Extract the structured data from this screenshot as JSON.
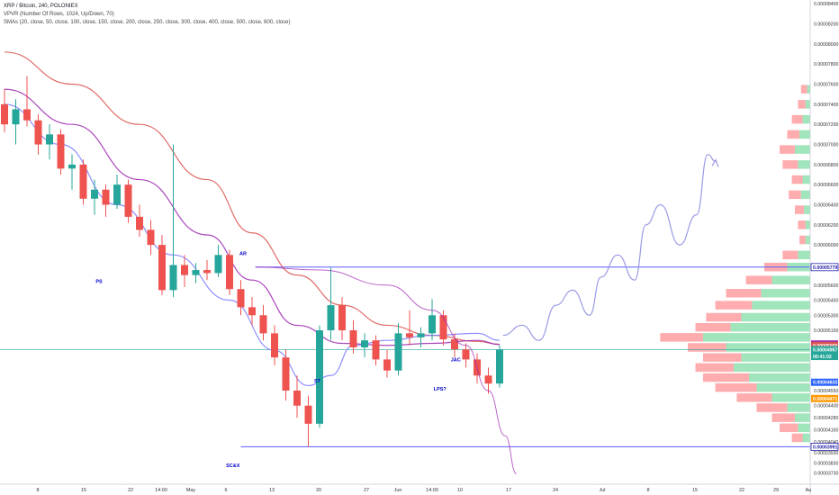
{
  "header": {
    "title": "XRP / Bitcoin, 240, POLONIEX",
    "vpvr": "VPVR (Number Of Rows, 1024, Up/Down, 70)",
    "smas": "SMAs (20, close, 50, close, 100, close, 150, close, 200, close, 250, close, 300, close, 400, close, 500, close, 600, close)"
  },
  "colors": {
    "up": "#26a69a",
    "down": "#ef5350",
    "annotation": "#0000cc",
    "sma_red": "#d9534f",
    "sma_purple": "#9c27b0",
    "sma_blue": "#7b7bff",
    "projection": "#9a9ae6",
    "vol_up": "#8fe0b0",
    "vol_down": "#ff9ea0",
    "horizontal_line": "#5c5cff",
    "tick_text": "#333333"
  },
  "chart_data": {
    "type": "candlestick",
    "y_axis": {
      "position": "right",
      "range": [
        3.69e-05,
        8.42e-05
      ],
      "ticks": [
        "0.00008400",
        "0.00008200",
        "0.00008000",
        "0.00007800",
        "0.00007600",
        "0.00007400",
        "0.00007200",
        "0.00007000",
        "0.00006800",
        "0.00006600",
        "0.00006400",
        "0.00006200",
        "0.00006000",
        "0.00005600",
        "0.00005450",
        "0.00005300",
        "0.00005150",
        "0.00004550",
        "0.00004400",
        "0.00004280",
        "0.00004160",
        "0.00004040",
        "0.00003930",
        "0.00003830",
        "0.00003730"
      ]
    },
    "x_axis": {
      "ticks": [
        "8",
        "15",
        "22",
        "14:00",
        "May",
        "6",
        "13",
        "20",
        "27",
        "Jun",
        "14:00",
        "10",
        "17",
        "24",
        "Jul",
        "8",
        "15",
        "22",
        "29",
        "Au"
      ]
    },
    "price_labels": [
      {
        "text": "0.00005779",
        "value": 5.779e-05,
        "style": "blue-outline"
      },
      {
        "text": "0.00005014",
        "value": 5.014e-05,
        "style": "purple"
      },
      {
        "text": "0.00005000",
        "value": 5e-05,
        "style": "red"
      },
      {
        "text": "0.00004957",
        "value": 4.957e-05,
        "style": "teal"
      },
      {
        "text": "00:41:02",
        "value": 4.89e-05,
        "style": "teal"
      },
      {
        "text": "0.00004633",
        "value": 4.633e-05,
        "style": "blue"
      },
      {
        "text": "0.00004471",
        "value": 4.471e-05,
        "style": "orange"
      },
      {
        "text": "0.00003991",
        "value": 3.991e-05,
        "style": "blue-outline"
      }
    ],
    "annotations": [
      {
        "text": "AR",
        "x": 21.2,
        "y": 5.9e-05
      },
      {
        "text": "PS",
        "x": 8.4,
        "y": 5.62e-05
      },
      {
        "text": "SC&X",
        "x": 20.3,
        "y": 3.79e-05
      },
      {
        "text": "ST",
        "x": 27.8,
        "y": 4.63e-05
      },
      {
        "text": "LPS?",
        "x": 38.7,
        "y": 4.55e-05
      },
      {
        "text": "JAC",
        "x": 40.1,
        "y": 4.84e-05
      }
    ],
    "horizontal_lines": [
      {
        "name": "AR level",
        "value": 5.779e-05,
        "x_start": 22.3
      },
      {
        "name": "SC level",
        "value": 3.991e-05,
        "x_start": 21.0
      }
    ],
    "ohlc": [
      [
        0.0,
        7.4e-05,
        7.55e-05,
        7.12e-05,
        7.2e-05
      ],
      [
        1.0,
        7.2e-05,
        7.45e-05,
        7e-05,
        7.35e-05
      ],
      [
        2.0,
        7.35e-05,
        7.68e-05,
        7.18e-05,
        7.24e-05
      ],
      [
        3.0,
        7.24e-05,
        7.3e-05,
        6.9e-05,
        7e-05
      ],
      [
        4.0,
        7e-05,
        7.2e-05,
        6.85e-05,
        7.1e-05
      ],
      [
        5.0,
        7.1e-05,
        7.15e-05,
        6.7e-05,
        6.76e-05
      ],
      [
        6.0,
        6.76e-05,
        6.9e-05,
        6.55e-05,
        6.8e-05
      ],
      [
        7.0,
        6.8e-05,
        6.85e-05,
        6.4e-05,
        6.46e-05
      ],
      [
        8.0,
        6.46e-05,
        6.65e-05,
        6.3e-05,
        6.55e-05
      ],
      [
        9.0,
        6.55e-05,
        6.6e-05,
        6.28e-05,
        6.4e-05
      ],
      [
        10.0,
        6.4e-05,
        6.7e-05,
        6.36e-05,
        6.6e-05
      ],
      [
        11.0,
        6.6e-05,
        6.65e-05,
        6.22e-05,
        6.28e-05
      ],
      [
        12.0,
        6.28e-05,
        6.4e-05,
        6.08e-05,
        6.15e-05
      ],
      [
        13.0,
        6.15e-05,
        6.25e-05,
        5.9e-05,
        6e-05
      ],
      [
        14.0,
        6e-05,
        6.1e-05,
        5.5e-05,
        5.55e-05
      ],
      [
        15.0,
        5.55e-05,
        7e-05,
        5.48e-05,
        5.8e-05
      ],
      [
        16.0,
        5.8e-05,
        5.9e-05,
        5.58e-05,
        5.7e-05
      ],
      [
        17.0,
        5.7e-05,
        5.82e-05,
        5.62e-05,
        5.75e-05
      ],
      [
        18.0,
        5.75e-05,
        5.85e-05,
        5.65e-05,
        5.72e-05
      ],
      [
        19.0,
        5.72e-05,
        6e-05,
        5.68e-05,
        5.9e-05
      ],
      [
        20.0,
        5.9e-05,
        5.95e-05,
        5.5e-05,
        5.56e-05
      ],
      [
        21.0,
        5.56e-05,
        5.65e-05,
        5.3e-05,
        5.38e-05
      ],
      [
        22.0,
        5.38e-05,
        5.48e-05,
        5.2e-05,
        5.3e-05
      ],
      [
        23.0,
        5.3e-05,
        5.4e-05,
        5.05e-05,
        5.12e-05
      ],
      [
        24.0,
        5.12e-05,
        5.2e-05,
        4.8e-05,
        4.88e-05
      ],
      [
        25.0,
        4.88e-05,
        4.96e-05,
        4.45e-05,
        4.55e-05
      ],
      [
        26.0,
        4.55e-05,
        4.7e-05,
        4.28e-05,
        4.4e-05
      ],
      [
        27.0,
        4.4e-05,
        4.5e-05,
        3.99e-05,
        4.22e-05
      ],
      [
        28.0,
        4.22e-05,
        5.2e-05,
        4.18e-05,
        5.15e-05
      ],
      [
        29.0,
        5.15e-05,
        5.78e-05,
        5.05e-05,
        5.4e-05
      ],
      [
        30.0,
        5.4e-05,
        5.48e-05,
        5.05e-05,
        5.15e-05
      ],
      [
        31.0,
        5.15e-05,
        5.25e-05,
        4.92e-05,
        4.98e-05
      ],
      [
        32.0,
        4.98e-05,
        5.12e-05,
        4.88e-05,
        5.05e-05
      ],
      [
        33.0,
        5.05e-05,
        5.1e-05,
        4.8e-05,
        4.86e-05
      ],
      [
        34.0,
        4.86e-05,
        4.96e-05,
        4.68e-05,
        4.75e-05
      ],
      [
        35.0,
        4.75e-05,
        5.22e-05,
        4.7e-05,
        5.12e-05
      ],
      [
        36.0,
        5.12e-05,
        5.35e-05,
        5e-05,
        5.08e-05
      ],
      [
        37.0,
        5.08e-05,
        5.18e-05,
        4.98e-05,
        5.12e-05
      ],
      [
        38.0,
        5.12e-05,
        5.46e-05,
        5.05e-05,
        5.3e-05
      ],
      [
        39.0,
        5.3e-05,
        5.35e-05,
        5e-05,
        5.06e-05
      ],
      [
        40.0,
        5.06e-05,
        5.12e-05,
        4.88e-05,
        4.96e-05
      ],
      [
        41.0,
        4.96e-05,
        5.02e-05,
        4.78e-05,
        4.86e-05
      ],
      [
        42.0,
        4.86e-05,
        4.92e-05,
        4.62e-05,
        4.7e-05
      ],
      [
        43.0,
        4.7e-05,
        4.78e-05,
        4.52e-05,
        4.62e-05
      ],
      [
        44.0,
        4.62e-05,
        5e-05,
        4.58e-05,
        4.96e-05
      ]
    ],
    "sma_lines": [
      {
        "color": "red",
        "points": [
          [
            0,
            7.92e-05
          ],
          [
            6,
            7.6e-05
          ],
          [
            12,
            7.2e-05
          ],
          [
            18,
            6.65e-05
          ],
          [
            22,
            6.12e-05
          ],
          [
            26,
            5.7e-05
          ],
          [
            30,
            5.4e-05
          ],
          [
            34,
            5.2e-05
          ],
          [
            38,
            5.1e-05
          ],
          [
            42,
            5.04e-05
          ],
          [
            44,
            5.01e-05
          ]
        ]
      },
      {
        "color": "purple",
        "points": [
          [
            0,
            7.55e-05
          ],
          [
            6,
            7.2e-05
          ],
          [
            12,
            6.65e-05
          ],
          [
            18,
            6.1e-05
          ],
          [
            22,
            5.65e-05
          ],
          [
            26,
            5.2e-05
          ],
          [
            30,
            5.02e-05
          ],
          [
            34,
            5e-05
          ],
          [
            38,
            5.02e-05
          ],
          [
            42,
            5.05e-05
          ],
          [
            44,
            5.01e-05
          ]
        ]
      },
      {
        "color": "blue",
        "points": [
          [
            0,
            7.4e-05
          ],
          [
            5,
            7e-05
          ],
          [
            10,
            6.4e-05
          ],
          [
            15,
            5.9e-05
          ],
          [
            20,
            5.45e-05
          ],
          [
            24,
            4.95e-05
          ],
          [
            27,
            4.6e-05
          ],
          [
            29,
            4.7e-05
          ],
          [
            31,
            5e-05
          ],
          [
            34,
            5.05e-05
          ],
          [
            38,
            5.1e-05
          ],
          [
            42,
            5.12e-05
          ],
          [
            44,
            5.05e-05
          ]
        ]
      }
    ],
    "arc_curve": [
      [
        22.3,
        5.78e-05
      ],
      [
        28,
        5.75e-05
      ],
      [
        34,
        5.6e-05
      ],
      [
        38,
        5.35e-05
      ],
      [
        41,
        5e-05
      ],
      [
        43,
        4.55e-05
      ],
      [
        44.5,
        4.1e-05
      ],
      [
        45.5,
        3.72e-05
      ]
    ],
    "projection_curve": [
      [
        44.3,
        5.1e-05
      ],
      [
        46,
        5.2e-05
      ],
      [
        47.5,
        5.05e-05
      ],
      [
        49,
        5.4e-05
      ],
      [
        50.5,
        5.55e-05
      ],
      [
        52,
        5.3e-05
      ],
      [
        53,
        5.68e-05
      ],
      [
        54.5,
        5.9e-05
      ],
      [
        56,
        5.65e-05
      ],
      [
        57,
        6.2e-05
      ],
      [
        58.3,
        6.4e-05
      ],
      [
        60,
        6e-05
      ],
      [
        61.5,
        6.3e-05
      ],
      [
        62.5,
        6.9e-05
      ],
      [
        63.2,
        6.83e-05
      ]
    ],
    "volume_profile": [
      [
        7.55e-05,
        0.06,
        0.02
      ],
      [
        7.4e-05,
        0.08,
        0.03
      ],
      [
        7.25e-05,
        0.12,
        0.05
      ],
      [
        7.1e-05,
        0.15,
        0.07
      ],
      [
        6.95e-05,
        0.2,
        0.1
      ],
      [
        6.8e-05,
        0.18,
        0.08
      ],
      [
        6.65e-05,
        0.12,
        0.05
      ],
      [
        6.5e-05,
        0.14,
        0.06
      ],
      [
        6.35e-05,
        0.1,
        0.04
      ],
      [
        6.2e-05,
        0.08,
        0.03
      ],
      [
        6.05e-05,
        0.07,
        0.03
      ],
      [
        5.9e-05,
        0.18,
        0.08
      ],
      [
        5.78e-05,
        0.3,
        0.15
      ],
      [
        5.65e-05,
        0.42,
        0.25
      ],
      [
        5.52e-05,
        0.55,
        0.32
      ],
      [
        5.4e-05,
        0.62,
        0.38
      ],
      [
        5.28e-05,
        0.68,
        0.45
      ],
      [
        5.18e-05,
        0.75,
        0.52
      ],
      [
        5.08e-05,
        0.98,
        0.7
      ],
      [
        4.98e-05,
        0.8,
        0.55
      ],
      [
        4.88e-05,
        0.7,
        0.45
      ],
      [
        4.78e-05,
        0.75,
        0.5
      ],
      [
        4.68e-05,
        0.7,
        0.4
      ],
      [
        4.58e-05,
        0.62,
        0.35
      ],
      [
        4.48e-05,
        0.48,
        0.25
      ],
      [
        4.38e-05,
        0.35,
        0.15
      ],
      [
        4.28e-05,
        0.25,
        0.1
      ],
      [
        4.18e-05,
        0.2,
        0.08
      ],
      [
        4.08e-05,
        0.12,
        0.05
      ]
    ]
  }
}
